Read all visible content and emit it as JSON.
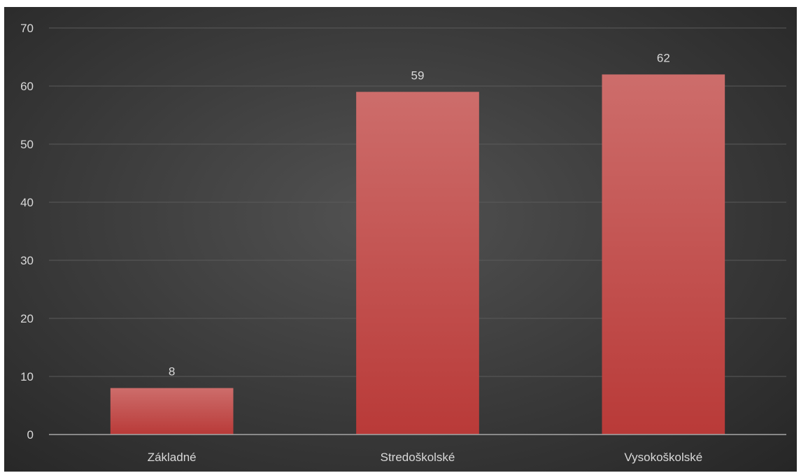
{
  "chart_data": {
    "type": "bar",
    "categories": [
      "Základné",
      "Stredoškolské",
      "Vysokoškolské"
    ],
    "values": [
      8,
      59,
      62
    ],
    "title": "",
    "xlabel": "",
    "ylabel": "",
    "ylim": [
      0,
      70
    ],
    "yticks": [
      "0",
      "10",
      "20",
      "30",
      "40",
      "50",
      "60",
      "70"
    ],
    "data_labels": [
      "8",
      "59",
      "62"
    ],
    "grid": true,
    "legend": "none",
    "colors": {
      "bar_top": "#cd6d6b",
      "bar_bottom": "#b93a38",
      "background_center": "#525252",
      "background_edge": "#262626",
      "text": "#d9d9d9"
    }
  }
}
